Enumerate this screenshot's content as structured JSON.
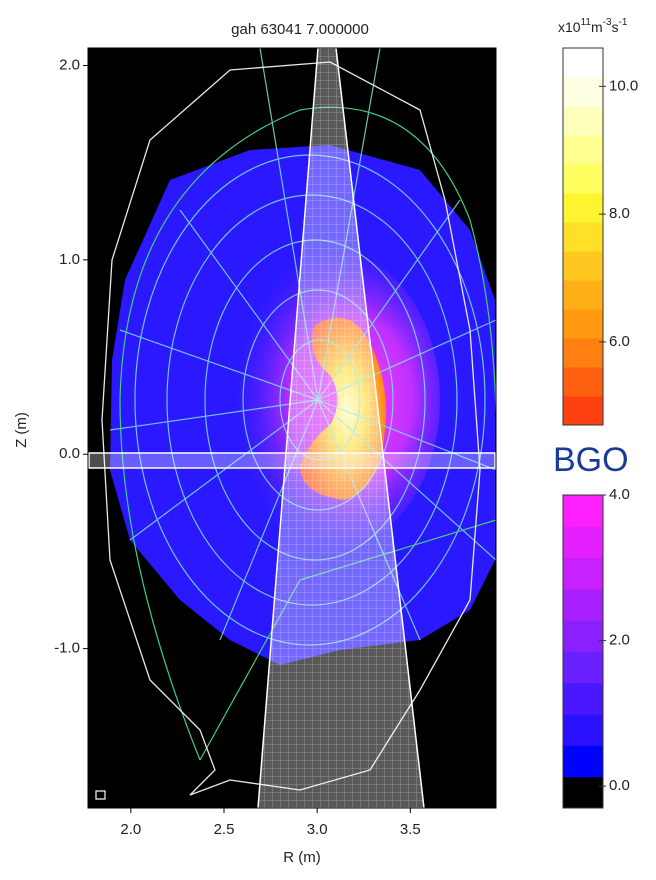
{
  "chart_data": {
    "type": "heatmap",
    "title": "gah  63041 7.000000",
    "xlabel": "R (m)",
    "ylabel": "Z (m)",
    "xlim": [
      1.77,
      3.96
    ],
    "ylim": [
      -1.82,
      2.09
    ],
    "xticks": [
      {
        "value": 2,
        "label": "2.0"
      },
      {
        "value": 2.5,
        "label": "2.5"
      },
      {
        "value": 3,
        "label": "3.0"
      },
      {
        "value": 3.5,
        "label": "3.5"
      }
    ],
    "yticks": [
      {
        "value": 2,
        "label": "2.0"
      },
      {
        "value": 1,
        "label": "1.0"
      },
      {
        "value": 0,
        "label": "0.0"
      },
      {
        "value": -1,
        "label": "-1.0"
      }
    ],
    "colorbar_unit": [
      {
        "text": "x10"
      },
      {
        "text": "11",
        "sup": true
      },
      {
        "text": "m"
      },
      {
        "text": "-3",
        "sup": true
      },
      {
        "text": "s"
      },
      {
        "text": "-1",
        "sup": true
      }
    ],
    "colorbars": [
      {
        "clim": [
          4.7,
          10.6
        ],
        "ticks": [
          {
            "value": 10,
            "label": "10.0"
          },
          {
            "value": 8,
            "label": "8.0"
          },
          {
            "value": 6,
            "label": "6.0"
          }
        ],
        "colors": [
          "#ff4010",
          "#ff6010",
          "#ff8010",
          "#ff9a10",
          "#ffb018",
          "#ffc820",
          "#ffe028",
          "#fff430",
          "#ffff60",
          "#ffff90",
          "#ffffbc",
          "#ffffe4",
          "#ffffff"
        ]
      },
      {
        "label": "BGO",
        "clim": [
          -0.3,
          4.0
        ],
        "ticks": [
          {
            "value": 4,
            "label": "4.0"
          },
          {
            "value": 2,
            "label": "2.0"
          },
          {
            "value": 0,
            "label": "0.0"
          }
        ],
        "colors": [
          "#000000",
          "#0000ff",
          "#2a10ff",
          "#4a18ff",
          "#6a20ff",
          "#8a20ff",
          "#a820ff",
          "#c820ff",
          "#e420ff",
          "#ff20ff"
        ]
      }
    ]
  }
}
